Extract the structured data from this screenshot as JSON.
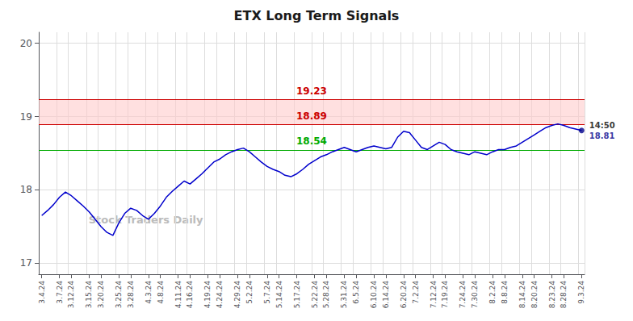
{
  "chart_data": {
    "type": "line",
    "title": "ETX Long Term Signals",
    "categories": [
      "3.4.24",
      null,
      null,
      "3.7.24",
      null,
      "3.12.24",
      null,
      null,
      "3.15.24",
      null,
      "3.20.24",
      null,
      null,
      "3.25.24",
      null,
      "3.28.24",
      null,
      null,
      "4.3.24",
      null,
      "4.8.24",
      null,
      null,
      "4.11.24",
      null,
      "4.16.24",
      null,
      null,
      "4.19.24",
      null,
      "4.24.24",
      null,
      null,
      "4.29.24",
      null,
      "5.2.24",
      null,
      null,
      "5.7.24",
      null,
      "5.14.24",
      null,
      null,
      "5.17.24",
      null,
      null,
      "5.22.24",
      null,
      "5.28.24",
      null,
      null,
      "5.31.24",
      null,
      "6.5.24",
      null,
      null,
      "6.10.24",
      null,
      "6.14.24",
      null,
      null,
      "6.20.24",
      null,
      "7.2.24",
      null,
      null,
      "7.12.24",
      null,
      "7.19.24",
      null,
      null,
      "7.24.24",
      null,
      "7.30.24",
      null,
      null,
      "8.2.24",
      null,
      "8.8.24",
      null,
      null,
      "8.14.24",
      null,
      "8.20.24",
      null,
      null,
      "8.23.24",
      null,
      "8.28.24",
      null,
      null,
      "9.3.24"
    ],
    "values": [
      17.65,
      17.72,
      17.8,
      17.9,
      17.97,
      17.92,
      17.85,
      17.78,
      17.7,
      17.6,
      17.5,
      17.42,
      17.38,
      17.55,
      17.68,
      17.75,
      17.72,
      17.65,
      17.6,
      17.68,
      17.78,
      17.9,
      17.98,
      18.05,
      18.12,
      18.08,
      18.15,
      18.22,
      18.3,
      18.38,
      18.42,
      18.48,
      18.52,
      18.55,
      18.57,
      18.52,
      18.45,
      18.38,
      18.32,
      18.28,
      18.25,
      18.2,
      18.18,
      18.22,
      18.28,
      18.35,
      18.4,
      18.45,
      18.48,
      18.52,
      18.55,
      18.58,
      18.55,
      18.52,
      18.55,
      18.58,
      18.6,
      18.58,
      18.56,
      18.58,
      18.72,
      18.8,
      18.78,
      18.68,
      18.58,
      18.55,
      18.6,
      18.65,
      18.62,
      18.55,
      18.52,
      18.5,
      18.48,
      18.52,
      18.5,
      18.48,
      18.52,
      18.55,
      18.55,
      18.58,
      18.6,
      18.65,
      18.7,
      18.75,
      18.8,
      18.85,
      18.88,
      18.9,
      18.88,
      18.85,
      18.83,
      18.81
    ],
    "color": "#0000CC",
    "ylim": [
      16.85,
      20.15
    ],
    "yticks": [
      17,
      18,
      19,
      20
    ],
    "grid": true,
    "hlines": [
      {
        "value": 19.23,
        "label": "19.23",
        "color": "#CC0000"
      },
      {
        "value": 18.89,
        "label": "18.89",
        "color": "#CC0000"
      },
      {
        "value": 18.54,
        "label": "18.54",
        "color": "#00AA00"
      }
    ],
    "band": {
      "from": 18.89,
      "to": 19.23,
      "color": "#FFCCCC"
    },
    "last_point": {
      "label": "14:50",
      "value_label": "18.81",
      "color": "#00008B"
    },
    "annotations": [
      {
        "text": "Stock Traders Daily",
        "color": "#BBBBBB"
      }
    ]
  }
}
